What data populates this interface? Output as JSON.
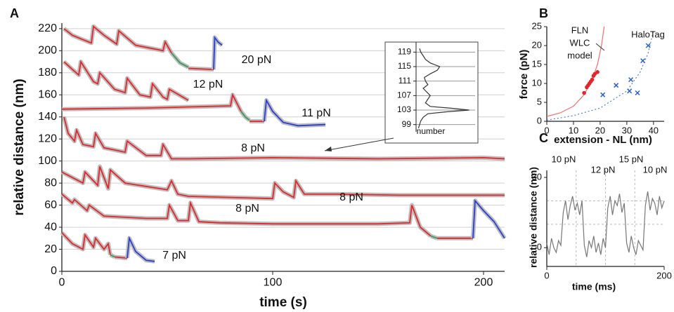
{
  "chart_data": [
    {
      "type": "line",
      "panel_label": "A",
      "xlabel": "time (s)",
      "ylabel": "relative distance (nm)",
      "xlim": [
        0,
        210
      ],
      "ylim": [
        0,
        225
      ],
      "xticks": [
        0,
        100,
        200
      ],
      "yticks": [
        0,
        20,
        40,
        60,
        80,
        100,
        120,
        140,
        160,
        180,
        200,
        220
      ],
      "grid": true,
      "noise_color": "#bdbdbd",
      "series": [
        {
          "color": "#e3262b",
          "x": [
            1,
            5,
            10,
            14,
            15,
            20,
            26,
            27,
            35,
            48,
            49,
            52
          ],
          "values": [
            220,
            214,
            210,
            207,
            222,
            214,
            206,
            218,
            205,
            200,
            208,
            198
          ]
        },
        {
          "color": "#3a9a5b",
          "x": [
            52,
            56,
            60
          ],
          "values": [
            198,
            189,
            185
          ]
        },
        {
          "color": "#e3262b",
          "x": [
            60,
            72
          ],
          "values": [
            184,
            183
          ]
        },
        {
          "color": "#2a3fd1",
          "x": [
            72,
            72.5,
            74,
            76
          ],
          "values": [
            183,
            212,
            208,
            205
          ]
        },
        {
          "color": "#e3262b",
          "x": [
            1,
            5,
            8,
            9,
            15,
            17,
            18,
            25,
            30,
            31,
            37,
            42,
            43,
            48,
            50,
            51,
            60
          ],
          "values": [
            190,
            183,
            178,
            190,
            172,
            170,
            180,
            165,
            162,
            175,
            160,
            158,
            170,
            158,
            156,
            165,
            155
          ]
        },
        {
          "color": "#e3262b",
          "x": [
            0,
            40,
            80,
            81,
            85
          ],
          "values": [
            147,
            148,
            150,
            160,
            145
          ]
        },
        {
          "color": "#3a9a5b",
          "x": [
            85,
            87,
            89
          ],
          "values": [
            145,
            140,
            137
          ]
        },
        {
          "color": "#e3262b",
          "x": [
            89,
            96
          ],
          "values": [
            136,
            136
          ]
        },
        {
          "color": "#2a3fd1",
          "x": [
            96,
            97,
            100,
            105,
            112,
            125
          ],
          "values": [
            136,
            155,
            145,
            135,
            132,
            133
          ]
        },
        {
          "color": "#e3262b",
          "x": [
            1,
            3,
            6,
            7,
            10,
            15,
            16,
            20,
            25,
            30,
            31,
            40,
            47,
            48,
            52,
            60,
            100,
            150,
            200,
            210
          ],
          "values": [
            140,
            125,
            118,
            128,
            115,
            113,
            125,
            112,
            110,
            108,
            118,
            105,
            105,
            115,
            102,
            102,
            103,
            102,
            103,
            102
          ]
        },
        {
          "color": "#e3262b",
          "x": [
            0,
            10,
            11,
            17,
            18,
            22,
            23,
            30,
            50,
            52,
            55,
            60,
            80,
            100,
            101,
            105,
            110,
            111,
            115,
            130,
            160,
            210
          ],
          "values": [
            90,
            80,
            90,
            78,
            95,
            75,
            92,
            80,
            74,
            82,
            70,
            68,
            67,
            66,
            80,
            72,
            67,
            82,
            70,
            70,
            69,
            69
          ]
        },
        {
          "color": "#e3262b",
          "x": [
            0,
            5,
            6,
            12,
            13,
            20,
            40,
            50,
            51,
            55,
            60,
            61,
            65,
            75,
            100,
            150,
            165,
            166,
            170,
            175
          ],
          "values": [
            70,
            62,
            65,
            55,
            60,
            50,
            48,
            48,
            60,
            46,
            46,
            62,
            45,
            44,
            43,
            43,
            44,
            60,
            40,
            32
          ]
        },
        {
          "color": "#3a9a5b",
          "x": [
            175,
            178
          ],
          "values": [
            32,
            30
          ]
        },
        {
          "color": "#e3262b",
          "x": [
            178,
            195
          ],
          "values": [
            30,
            30
          ]
        },
        {
          "color": "#2a3fd1",
          "x": [
            195,
            196,
            200,
            205,
            210
          ],
          "values": [
            30,
            64,
            55,
            45,
            30
          ]
        },
        {
          "color": "#e3262b",
          "x": [
            0,
            5,
            10,
            11,
            15,
            16,
            20,
            22,
            23
          ],
          "values": [
            35,
            25,
            20,
            33,
            22,
            30,
            20,
            25,
            15
          ]
        },
        {
          "color": "#3a9a5b",
          "x": [
            23,
            25
          ],
          "values": [
            15,
            13
          ]
        },
        {
          "color": "#e3262b",
          "x": [
            25,
            31
          ],
          "values": [
            13,
            12
          ]
        },
        {
          "color": "#2a3fd1",
          "x": [
            31,
            32,
            35,
            40,
            44
          ],
          "values": [
            12,
            30,
            18,
            10,
            9
          ]
        }
      ],
      "annotations": [
        {
          "text": "20 pN"
        },
        {
          "text": "12 pN"
        },
        {
          "text": "11 pN"
        },
        {
          "text": "8 pN"
        },
        {
          "text": "8 pN"
        },
        {
          "text": "8 pN"
        },
        {
          "text": "7 pN"
        }
      ]
    },
    {
      "type": "line",
      "xlabel": "number",
      "xlim": [
        0,
        50
      ],
      "ylim": [
        97,
        121
      ],
      "yticks": [
        99,
        103,
        107,
        111,
        115,
        119
      ],
      "grid": true,
      "series": [
        {
          "color": "#333333",
          "x": [
            2,
            3,
            4,
            6,
            10,
            25,
            45,
            30,
            12,
            8,
            10,
            12,
            9,
            6,
            10,
            8,
            7,
            12,
            18,
            20,
            12,
            8,
            6,
            4,
            3
          ],
          "values": [
            98,
            99,
            100,
            101,
            102,
            102.5,
            103,
            103.5,
            104,
            105,
            106,
            107,
            108,
            109,
            110,
            111,
            112,
            113,
            114,
            115,
            116,
            117,
            118,
            119,
            120
          ]
        }
      ]
    },
    {
      "type": "scatter",
      "panel_label": "B",
      "xlabel": "extension - NL (nm)",
      "ylabel": "force (pN)",
      "xlim": [
        0,
        44
      ],
      "ylim": [
        0,
        25
      ],
      "xticks": [
        0,
        10,
        20,
        30,
        40
      ],
      "yticks": [
        0,
        5,
        10,
        15,
        20,
        25
      ],
      "series": [
        {
          "color": "#f07070",
          "x": [
            0,
            5,
            10,
            14,
            17,
            19,
            20.5,
            21.5
          ],
          "values": [
            1.3,
            2.2,
            4,
            7,
            11,
            15,
            20,
            25
          ]
        },
        {
          "color": "#4a7fd8",
          "dash": true,
          "x": [
            0,
            10,
            20,
            30,
            35,
            38,
            40
          ],
          "values": [
            0.3,
            1.5,
            3.5,
            8,
            13,
            18,
            24
          ]
        },
        {
          "color": "#e3262b",
          "marker": "circle",
          "x": [
            14,
            15,
            15.5,
            16,
            16.5,
            17,
            17.5,
            18,
            19
          ],
          "values": [
            7.5,
            9,
            9.5,
            10,
            10.5,
            11,
            12,
            12.5,
            13
          ]
        },
        {
          "color": "#2a5fd1",
          "marker": "x",
          "x": [
            21,
            26,
            31,
            31.5,
            34,
            36,
            38
          ],
          "values": [
            7,
            9.5,
            8,
            11,
            7.5,
            16,
            20
          ]
        }
      ],
      "annotations": [
        {
          "text": "FLN",
          "color": "#e3262b"
        },
        {
          "text": "WLC",
          "color": "#e3262b"
        },
        {
          "text": "model",
          "color": "#e3262b"
        },
        {
          "text": "HaloTag",
          "color": "#2a7fd1"
        }
      ]
    },
    {
      "type": "line",
      "panel_label": "C",
      "xlabel": "time (ms)",
      "ylabel": "relative distance (nm)",
      "xlim": [
        0,
        200
      ],
      "ylim": [
        -8,
        33
      ],
      "xticks": [
        0,
        200
      ],
      "yticks": [
        0,
        30
      ],
      "xgrid": [
        50,
        100,
        150
      ],
      "ygrid": [
        10,
        20
      ],
      "series": [
        {
          "color": "#777777",
          "x": [
            0,
            4,
            8,
            12,
            16,
            20,
            24,
            28,
            32,
            36,
            40,
            44,
            48,
            52,
            56,
            60,
            64,
            68,
            72,
            76,
            80,
            84,
            88,
            92,
            96,
            100,
            104,
            108,
            112,
            116,
            120,
            124,
            128,
            132,
            136,
            140,
            144,
            148,
            152,
            156,
            160,
            164,
            168,
            172,
            176,
            180,
            184,
            188,
            192,
            196,
            200
          ],
          "values": [
            2,
            -3,
            4,
            0,
            -2,
            3,
            1,
            15,
            20,
            12,
            18,
            22,
            16,
            19,
            14,
            20,
            1,
            -4,
            3,
            0,
            5,
            -2,
            2,
            -3,
            4,
            0,
            17,
            22,
            14,
            20,
            18,
            23,
            15,
            19,
            2,
            -2,
            5,
            0,
            -3,
            3,
            1,
            -1,
            18,
            24,
            16,
            21,
            19,
            14,
            22,
            17,
            20
          ]
        }
      ],
      "annotations": [
        {
          "text": "10 pN"
        },
        {
          "text": "12 pN"
        },
        {
          "text": "15 pN"
        },
        {
          "text": "10 pN"
        }
      ]
    }
  ]
}
